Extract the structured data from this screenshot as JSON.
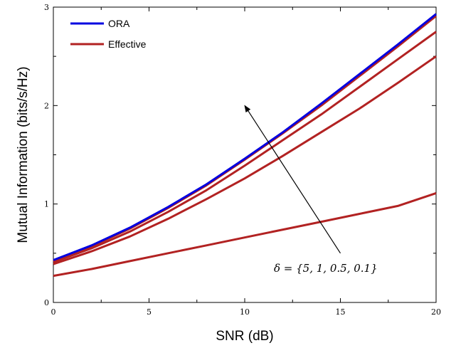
{
  "chart_data": {
    "type": "line",
    "title": "",
    "xlabel": "SNR (dB)",
    "ylabel": "Mutual Information (bits/s/Hz)",
    "xlim": [
      0,
      20
    ],
    "ylim": [
      0,
      3
    ],
    "xticks": [
      0,
      5,
      10,
      15,
      20
    ],
    "yticks": [
      0,
      1,
      2,
      3
    ],
    "grid": false,
    "legend_position": "top-left",
    "x": [
      0,
      2,
      4,
      6,
      8,
      10,
      12,
      14,
      16,
      18,
      20
    ],
    "series": [
      {
        "name": "ORA",
        "color": "#0000e0",
        "values": [
          0.43,
          0.58,
          0.76,
          0.97,
          1.2,
          1.46,
          1.73,
          2.02,
          2.32,
          2.62,
          2.93
        ]
      },
      {
        "name": "Effective",
        "color": "#b22222",
        "values": [
          0.42,
          0.57,
          0.75,
          0.96,
          1.19,
          1.45,
          1.72,
          2.0,
          2.3,
          2.6,
          2.91
        ]
      },
      {
        "color": "#b22222",
        "values": [
          0.41,
          0.55,
          0.72,
          0.92,
          1.14,
          1.39,
          1.65,
          1.91,
          2.19,
          2.47,
          2.75
        ]
      },
      {
        "color": "#b22222",
        "values": [
          0.39,
          0.52,
          0.67,
          0.85,
          1.05,
          1.26,
          1.49,
          1.73,
          1.97,
          2.23,
          2.5
        ]
      },
      {
        "color": "#b22222",
        "values": [
          0.27,
          0.34,
          0.42,
          0.5,
          0.58,
          0.66,
          0.74,
          0.82,
          0.9,
          0.98,
          1.11
        ]
      }
    ],
    "annotation": {
      "text": "δ = {5, 1, 0.5, 0.1}",
      "arrow_from": [
        15.0,
        0.5
      ],
      "arrow_to": [
        10.0,
        2.0
      ]
    },
    "legend": [
      "ORA",
      "Effective"
    ]
  }
}
